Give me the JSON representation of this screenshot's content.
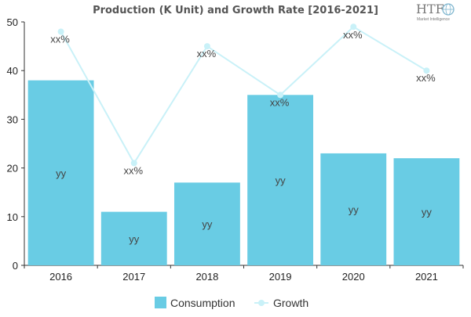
{
  "chart_data": {
    "type": "bar",
    "title": "Production (K Unit) and Growth Rate [2016-2021]",
    "categories": [
      "2016",
      "2017",
      "2018",
      "2019",
      "2020",
      "2021"
    ],
    "ylim": [
      0,
      50
    ],
    "yticks": [
      0,
      10,
      20,
      30,
      40,
      50
    ],
    "grid": false,
    "legend_position": "bottom",
    "series": [
      {
        "name": "Consumption",
        "type": "bar",
        "color": "#69CCE4",
        "values": [
          38,
          11,
          17,
          35,
          23,
          22
        ],
        "labels": [
          "yy",
          "yy",
          "yy",
          "yy",
          "yy",
          "yy"
        ]
      },
      {
        "name": "Growth",
        "type": "line",
        "color": "#C9F1F8",
        "values": [
          48,
          21,
          45,
          35,
          49,
          40
        ],
        "labels": [
          "xx%",
          "xx%",
          "xx%",
          "xx%",
          "xx%",
          "xx%"
        ]
      }
    ]
  },
  "logo": {
    "text": "HTF",
    "subtitle": "Market Intelligence",
    "icon": "globe-icon"
  }
}
